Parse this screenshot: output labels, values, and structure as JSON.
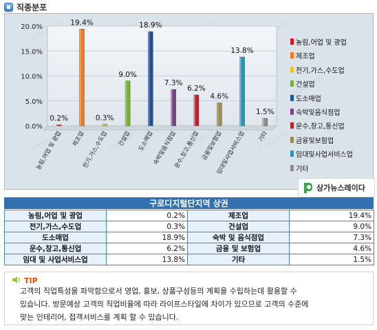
{
  "section": {
    "title": "직종분포",
    "icon": "square-bullet-icon"
  },
  "chart_data": {
    "type": "bar",
    "categories": [
      "농림,어업 및 광업",
      "제조업",
      "전기,가스,수도업",
      "건설업",
      "도소매업",
      "숙박및음식점업",
      "운수,창고,통신업",
      "금융및보험업",
      "임대및사업서비스업",
      "기타"
    ],
    "values": [
      0.2,
      19.4,
      0.3,
      9.0,
      18.9,
      7.3,
      6.2,
      4.6,
      13.8,
      1.5
    ],
    "data_labels": [
      "0.2%",
      "19.4%",
      "0.3%",
      "9.0%",
      "18.9%",
      "7.3%",
      "6.2%",
      "4.6%",
      "13.8%",
      "1.5%"
    ],
    "colors": [
      "#d7161f",
      "#ef7b1d",
      "#f1c21b",
      "#78b035",
      "#1f4f9b",
      "#7b3f86",
      "#b7242b",
      "#9c8c4d",
      "#2595b8",
      "#8d8d8d"
    ],
    "y_ticks": [
      "0.0%",
      "5.0%",
      "10.0%",
      "15.0%",
      "20.0%"
    ],
    "ylim": [
      0,
      20
    ],
    "grid": true,
    "legend_position": "right"
  },
  "watermark": "상가뉴스레이다",
  "brand": {
    "name": "상가뉴스레이다"
  },
  "table": {
    "title": "구로디지털단지역 상권",
    "rows": [
      [
        {
          "label": "농림,어업 및 광업",
          "value": "0.2%"
        },
        {
          "label": "제조업",
          "value": "19.4%"
        }
      ],
      [
        {
          "label": "전기,가스,수도업",
          "value": "0.3%"
        },
        {
          "label": "건설업",
          "value": "9.0%"
        }
      ],
      [
        {
          "label": "도소매업",
          "value": "18.9%"
        },
        {
          "label": "숙박 및 음식점업",
          "value": "7.3%"
        }
      ],
      [
        {
          "label": "운수,창고,통신업",
          "value": "6.2%"
        },
        {
          "label": "금융 및 보험업",
          "value": "4.6%"
        }
      ],
      [
        {
          "label": "임대 및 사업서비스업",
          "value": "13.8%"
        },
        {
          "label": "기타",
          "value": "1.5%"
        }
      ]
    ]
  },
  "tip": {
    "label": "TIP",
    "icon": "speaker-icon",
    "lines": [
      "고객의 직업특성을 파악함으로서 영업, 홍보, 상품구성등의 계획을 수립하는데 활용할 수",
      "있습니다. 방문예상 고객의 직업비율에 따라 라이프스타일에 차이가 있으므로 고객의 수준에",
      "맞는 인테리어, 접객서비스를 계획 할 수 있습니다."
    ]
  }
}
